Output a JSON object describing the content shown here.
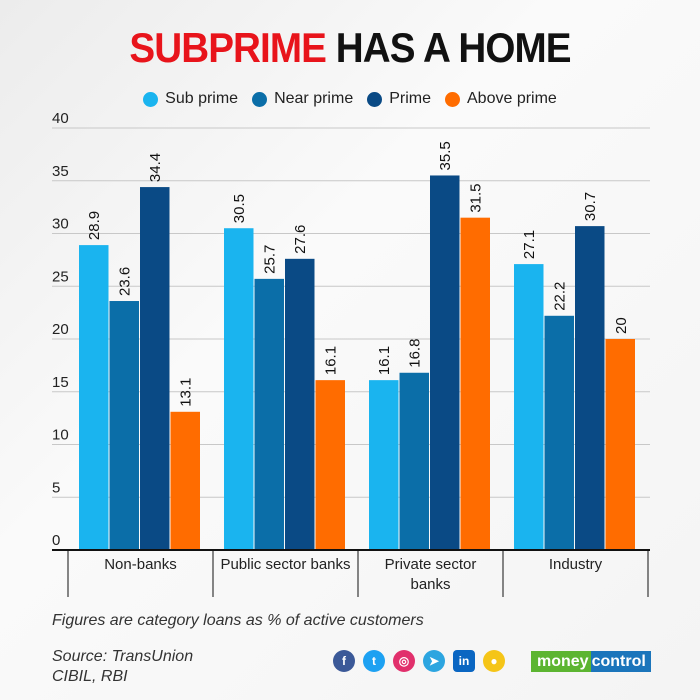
{
  "chart_data": {
    "type": "bar",
    "title_red": "SUBPRIME",
    "title_black": "HAS A HOME",
    "categories": [
      "Non-banks",
      "Public sector banks",
      "Private sector banks",
      "Industry"
    ],
    "category_lines": [
      [
        "Non-banks"
      ],
      [
        "Public sector banks"
      ],
      [
        "Private sector",
        "banks"
      ],
      [
        "Industry"
      ]
    ],
    "series": [
      {
        "name": "Sub prime",
        "color": "#1ab4ef",
        "values": [
          28.9,
          30.5,
          16.1,
          27.1
        ],
        "labels": [
          "28.9",
          "30.5",
          "16.1",
          "27.1"
        ]
      },
      {
        "name": "Near prime",
        "color": "#0b6ea8",
        "values": [
          23.6,
          25.7,
          16.8,
          22.2
        ],
        "labels": [
          "23.6",
          "25.7",
          "16.8",
          "22.2"
        ]
      },
      {
        "name": "Prime",
        "color": "#0a4a85",
        "values": [
          34.4,
          27.6,
          35.5,
          30.7
        ],
        "labels": [
          "34.4",
          "27.6",
          "35.5",
          "30.7"
        ]
      },
      {
        "name": "Above prime",
        "color": "#ff6c00",
        "values": [
          13.1,
          16.1,
          31.5,
          20
        ],
        "labels": [
          "13.1",
          "16.1",
          "31.5",
          "20"
        ]
      }
    ],
    "ylim": [
      0,
      40
    ],
    "yticks": [
      0,
      5,
      10,
      15,
      20,
      25,
      30,
      35,
      40
    ],
    "grid": true,
    "legend_position": "top-center",
    "xlabel": "",
    "ylabel": ""
  },
  "footer": {
    "note": "Figures are category loans as % of active customers",
    "source_line1": "Source: TransUnion",
    "source_line2": "CIBIL, RBI",
    "brand_left": "money",
    "brand_right": "control"
  },
  "social_icons": [
    "facebook-icon",
    "twitter-icon",
    "instagram-icon",
    "telegram-icon",
    "linkedin-icon",
    "koo-icon"
  ]
}
